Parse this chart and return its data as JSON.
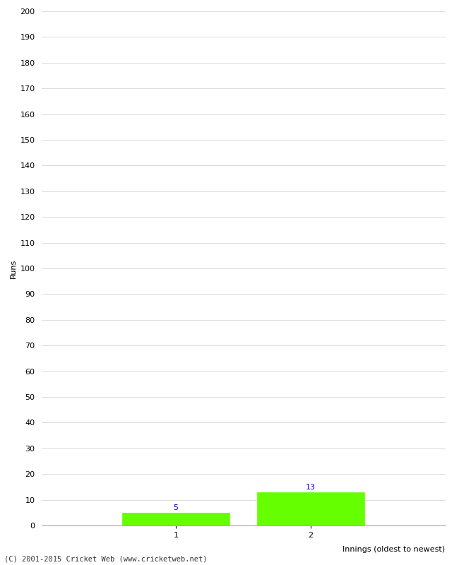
{
  "innings": [
    1,
    2
  ],
  "runs": [
    5,
    13
  ],
  "bar_color": "#66ff00",
  "bar_edge_color": "#66ff00",
  "ylabel": "Runs",
  "xlabel": "Innings (oldest to newest)",
  "ylim": [
    0,
    200
  ],
  "ytick_step": 10,
  "label_color": "#0000cc",
  "footer": "(C) 2001-2015 Cricket Web (www.cricketweb.net)",
  "background_color": "#ffffff",
  "grid_color": "#cccccc",
  "bar_width": 0.8,
  "xlim": [
    0,
    3
  ]
}
